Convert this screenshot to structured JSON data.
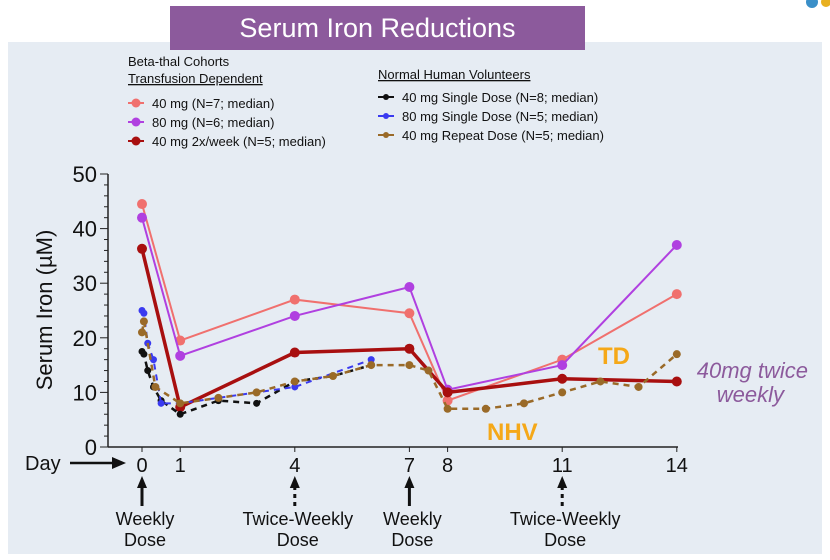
{
  "chart_data": {
    "type": "line",
    "title": "Serum Iron Reductions",
    "ylabel": "Serum Iron (µM)",
    "xlabel": "Day",
    "ylim": [
      0,
      50
    ],
    "yticks": [
      "0",
      "10",
      "20",
      "30",
      "40",
      "50"
    ],
    "xticks": [
      {
        "day": 0,
        "label": "0"
      },
      {
        "day": 1,
        "label": "1"
      },
      {
        "day": 4,
        "label": "4"
      },
      {
        "day": 7,
        "label": "7"
      },
      {
        "day": 8,
        "label": "8"
      },
      {
        "day": 11,
        "label": "11"
      },
      {
        "day": 14,
        "label": "14"
      }
    ],
    "legend_groups": [
      {
        "title": "Beta-thal Cohorts",
        "subtitle": "Transfusion Dependent"
      },
      {
        "title": "",
        "subtitle": "Normal Human Volunteers"
      }
    ],
    "series": [
      {
        "name": "40 mg (N=7; median)",
        "group": 0,
        "color": "#f0706e",
        "dash": false,
        "width": 2,
        "r": 5,
        "x": [
          0,
          1,
          4,
          7,
          8,
          11,
          14
        ],
        "y": [
          44.5,
          19.5,
          27,
          24.5,
          8.5,
          16,
          28
        ]
      },
      {
        "name": "80 mg (N=6; median)",
        "group": 0,
        "color": "#b040e0",
        "dash": false,
        "width": 2,
        "r": 5,
        "x": [
          0,
          1,
          4,
          7,
          8,
          11,
          14
        ],
        "y": [
          42,
          16.7,
          24,
          29.3,
          10.5,
          15,
          37
        ]
      },
      {
        "name": "40 mg 2x/week (N=5; median)",
        "group": 0,
        "color": "#a80f0f",
        "dash": false,
        "width": 3.5,
        "r": 5,
        "x": [
          0,
          1,
          4,
          7,
          8,
          11,
          14
        ],
        "y": [
          36.3,
          7.3,
          17.3,
          18,
          10,
          12.5,
          12
        ]
      },
      {
        "name": "40 mg Single Dose (N=8; median)",
        "group": 1,
        "color": "#111111",
        "dash": true,
        "width": 2.5,
        "r": 3.5,
        "x": [
          0,
          0.05,
          0.15,
          0.3,
          0.5,
          1,
          2,
          3,
          4,
          5,
          6
        ],
        "y": [
          17.5,
          17,
          14,
          11,
          8.5,
          6,
          8.5,
          8,
          12,
          13,
          15
        ]
      },
      {
        "name": "80 mg Single Dose (N=5; median)",
        "group": 1,
        "color": "#3a3af0",
        "dash": true,
        "width": 2,
        "r": 3.5,
        "x": [
          0,
          0.05,
          0.15,
          0.3,
          0.5,
          1,
          4,
          6
        ],
        "y": [
          25,
          24.5,
          19,
          16,
          8,
          8,
          11,
          16
        ]
      },
      {
        "name": "40 mg Repeat Dose (N=5; median)",
        "group": 1,
        "color": "#9a6a28",
        "dash": true,
        "width": 2.5,
        "r": 4,
        "x": [
          0,
          0.05,
          0.35,
          1,
          2,
          3,
          4,
          5,
          6,
          7,
          7.5,
          8,
          9,
          10,
          11,
          12,
          13,
          14
        ],
        "y": [
          21,
          23,
          11,
          8,
          9,
          10,
          12,
          13,
          15,
          15,
          14,
          7,
          7,
          8,
          10,
          12,
          11,
          17
        ]
      }
    ],
    "annotations": {
      "td": "TD",
      "nhv": "NHV",
      "twice_weekly_1": "40mg twice",
      "twice_weekly_2": "weekly"
    },
    "dose_markers": [
      {
        "day": 0,
        "line1": "Weekly",
        "line2": "Dose",
        "dashed": false
      },
      {
        "day": 4,
        "line1": "Twice-Weekly",
        "line2": "Dose",
        "dashed": true
      },
      {
        "day": 7,
        "line1": "Weekly",
        "line2": "Dose",
        "dashed": false
      },
      {
        "day": 11,
        "line1": "Twice-Weekly",
        "line2": "Dose",
        "dashed": true
      }
    ]
  }
}
